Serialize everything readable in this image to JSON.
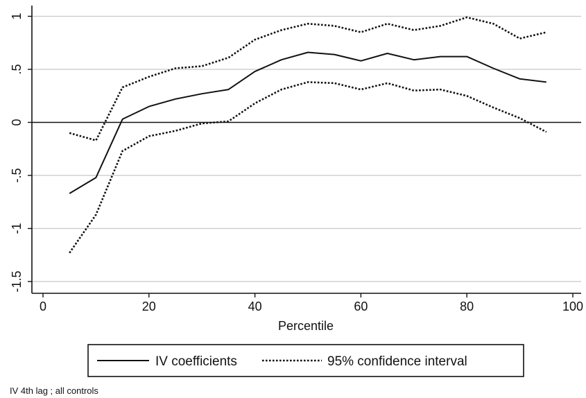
{
  "chart_data": {
    "type": "line",
    "xlabel": "Percentile",
    "ylabel": "",
    "xlim": [
      0,
      100
    ],
    "ylim": [
      -1.6,
      1.1
    ],
    "x_ticks": [
      0,
      20,
      40,
      60,
      80,
      100
    ],
    "y_ticks": [
      {
        "value": -1.5,
        "label": "-1.5"
      },
      {
        "value": -1,
        "label": "-1"
      },
      {
        "value": -0.5,
        "label": "-.5"
      },
      {
        "value": 0,
        "label": "0"
      },
      {
        "value": 0.5,
        "label": ".5"
      },
      {
        "value": 1,
        "label": "1"
      }
    ],
    "grid": true,
    "zero_line": true,
    "legend_position": "bottom",
    "series": [
      {
        "name": "IV coefficients",
        "style": "solid",
        "x": [
          5,
          10,
          15,
          20,
          25,
          30,
          35,
          40,
          45,
          50,
          55,
          60,
          65,
          70,
          75,
          80,
          85,
          90,
          95
        ],
        "values": [
          -0.67,
          -0.52,
          0.03,
          0.15,
          0.22,
          0.27,
          0.31,
          0.48,
          0.59,
          0.66,
          0.64,
          0.58,
          0.65,
          0.59,
          0.62,
          0.62,
          0.51,
          0.41,
          0.38
        ]
      },
      {
        "name": "95% confidence interval",
        "style": "dotted",
        "x": [
          5,
          10,
          15,
          20,
          25,
          30,
          35,
          40,
          45,
          50,
          55,
          60,
          65,
          70,
          75,
          80,
          85,
          90,
          95
        ],
        "values": [
          -0.1,
          -0.17,
          0.33,
          0.43,
          0.51,
          0.53,
          0.61,
          0.78,
          0.87,
          0.93,
          0.91,
          0.85,
          0.93,
          0.87,
          0.91,
          0.99,
          0.93,
          0.79,
          0.85
        ]
      },
      {
        "name": "",
        "style": "dotted",
        "x": [
          5,
          10,
          15,
          20,
          25,
          30,
          35,
          40,
          45,
          50,
          55,
          60,
          65,
          70,
          75,
          80,
          85,
          90,
          95
        ],
        "values": [
          -1.23,
          -0.87,
          -0.27,
          -0.13,
          -0.08,
          -0.01,
          0.01,
          0.18,
          0.31,
          0.38,
          0.37,
          0.31,
          0.37,
          0.3,
          0.31,
          0.25,
          0.14,
          0.04,
          -0.09
        ]
      }
    ],
    "legend": [
      {
        "label": "IV coefficients",
        "style": "solid"
      },
      {
        "label": "95% confidence interval",
        "style": "dotted"
      }
    ]
  },
  "note": "IV 4th lag ; all controls"
}
